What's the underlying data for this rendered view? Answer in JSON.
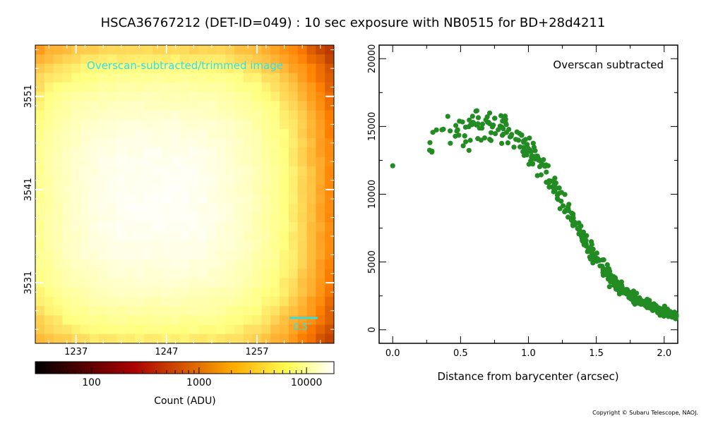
{
  "title": "HSCA36767212 (DET-ID=049) :  10 sec exposure with NB0515 for BD+28d4211",
  "copyright": "Copyright © Subaru Telescope, NAOJ.",
  "chart_data": [
    {
      "type": "heatmap",
      "annotation": "Overscan-subtracted/trimmed image",
      "scale_bar_label": "0.5″",
      "x_ticks": [
        1237,
        1247,
        1257
      ],
      "y_ticks": [
        3551,
        3541,
        3531
      ],
      "x_range": [
        1233,
        1265
      ],
      "y_range": [
        3525,
        3556
      ],
      "colorscale": "afmhot",
      "peak_pixel": [
        1246,
        3540
      ],
      "colorbar": {
        "label": "Count (ADU)",
        "scale": "log",
        "range": [
          30,
          18000
        ],
        "tick_labels": [
          "100",
          "1000",
          "10000"
        ],
        "ticks": [
          100,
          1000,
          10000
        ]
      }
    },
    {
      "type": "scatter",
      "annotation": "Overscan subtracted",
      "xlabel": "Distance from barycenter (arcsec)",
      "ylabel": "",
      "xlim": [
        -0.1,
        2.1
      ],
      "ylim": [
        -1000,
        21000
      ],
      "x_ticks": [
        0.0,
        0.5,
        1.0,
        1.5,
        2.0
      ],
      "x_tick_labels": [
        "0.0",
        "0.5",
        "1.0",
        "1.5",
        "2.0"
      ],
      "y_ticks": [
        0,
        5000,
        10000,
        15000,
        20000
      ],
      "y_tick_labels": [
        "0",
        "5000",
        "10000",
        "15000",
        "20000"
      ],
      "marker_color": "#228b22",
      "profile": {
        "x": [
          0.0,
          0.1,
          0.2,
          0.3,
          0.4,
          0.5,
          0.6,
          0.7,
          0.8,
          0.9,
          1.0,
          1.1,
          1.2,
          1.3,
          1.4,
          1.5,
          1.6,
          1.7,
          1.8,
          1.9,
          2.0,
          2.1
        ],
        "y": [
          12100,
          12400,
          13000,
          13600,
          14200,
          14600,
          14800,
          14900,
          14700,
          14200,
          13300,
          12100,
          10500,
          8700,
          6900,
          5200,
          3900,
          2900,
          2200,
          1700,
          1300,
          1000
        ],
        "scatter": [
          300,
          800,
          1200,
          1500,
          1600,
          1700,
          1700,
          1700,
          1600,
          1500,
          1300,
          1200,
          1100,
          1000,
          900,
          800,
          700,
          600,
          500,
          450,
          400,
          350
        ]
      },
      "point_count": 480
    }
  ]
}
